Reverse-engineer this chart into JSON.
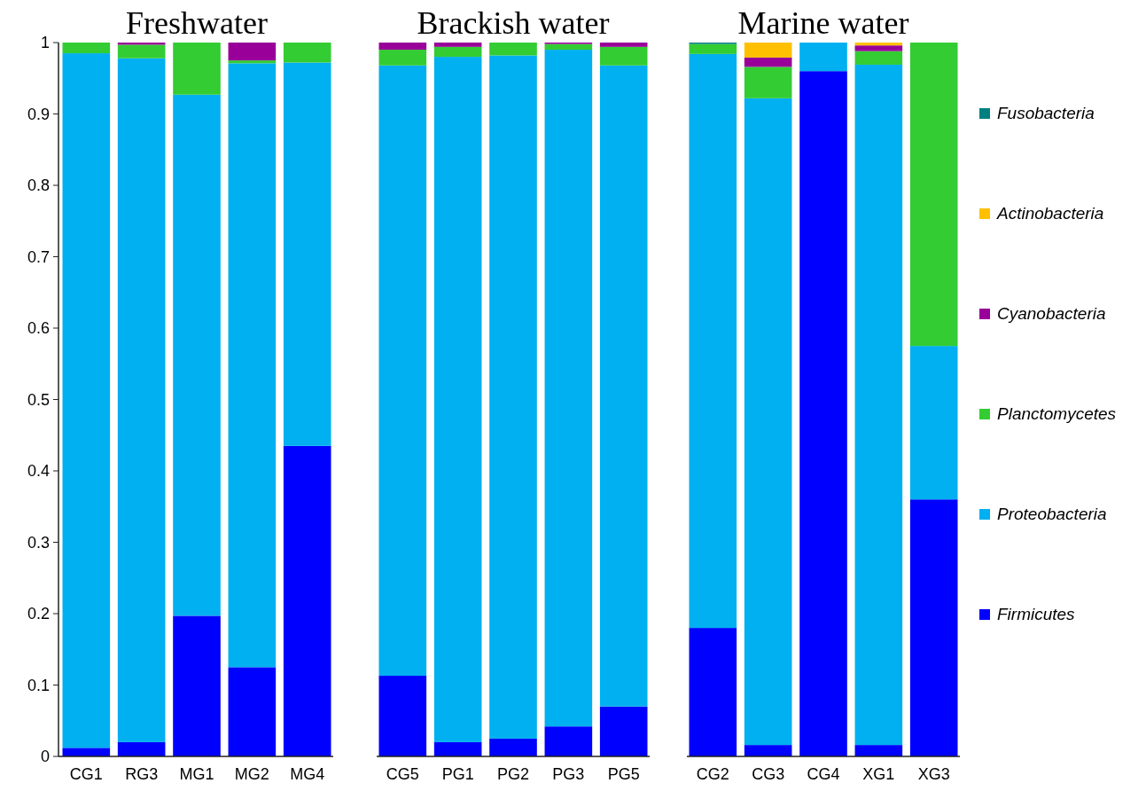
{
  "chart_data": [
    {
      "type": "bar",
      "title": "Freshwater",
      "stacked": true,
      "categories": [
        "CG1",
        "RG3",
        "MG1",
        "MG2",
        "MG4"
      ],
      "ylim": [
        0,
        1
      ],
      "yticks": [
        0,
        0.1,
        0.2,
        0.3,
        0.4,
        0.5,
        0.6,
        0.7,
        0.8,
        0.9,
        1
      ],
      "legend": false,
      "series": [
        {
          "color": "#0000ff",
          "values": [
            0.012,
            0.02,
            0.197,
            0.125,
            0.435
          ]
        },
        {
          "color": "#00b0f0",
          "values": [
            0.973,
            0.958,
            0.73,
            0.846,
            0.537
          ]
        },
        {
          "color": "#33cc33",
          "values": [
            0.015,
            0.019,
            0.073,
            0.004,
            0.028
          ]
        },
        {
          "color": "#990099",
          "values": [
            0,
            0.003,
            0,
            0.025,
            0
          ]
        }
      ]
    },
    {
      "type": "bar",
      "title": "Brackish water",
      "stacked": true,
      "categories": [
        "CG5",
        "PG1",
        "PG2",
        "PG3",
        "PG5"
      ],
      "ylim": [
        0,
        1
      ],
      "tick_labels": "x",
      "legend": false,
      "series": [
        {
          "color": "#0000ff",
          "values": [
            0.113,
            0.02,
            0.025,
            0.042,
            0.07
          ]
        },
        {
          "color": "#00b0f0",
          "values": [
            0.855,
            0.96,
            0.957,
            0.948,
            0.898
          ]
        },
        {
          "color": "#33cc33",
          "values": [
            0.022,
            0.014,
            0.018,
            0.008,
            0.026
          ]
        },
        {
          "color": "#990099",
          "values": [
            0.01,
            0.006,
            0,
            0.002,
            0.006
          ]
        }
      ]
    },
    {
      "type": "bar",
      "title": "Marine water",
      "stacked": true,
      "categories": [
        "CG2",
        "CG3",
        "CG4",
        "XG1",
        "XG3"
      ],
      "ylim": [
        0,
        1
      ],
      "tick_labels": "x",
      "legend": "right",
      "series": [
        {
          "name": "Firmicutes",
          "color": "#0000ff",
          "values": [
            0.18,
            0.016,
            0.96,
            0.016,
            0.36
          ]
        },
        {
          "name": "Proteobacteria",
          "color": "#00b0f0",
          "values": [
            0.804,
            0.906,
            0.04,
            0.953,
            0.215
          ]
        },
        {
          "name": "Planctomycetes",
          "color": "#33cc33",
          "values": [
            0.014,
            0.044,
            0,
            0.019,
            0.425
          ]
        },
        {
          "name": "Cyanobacteria",
          "color": "#990099",
          "values": [
            0,
            0.013,
            0,
            0.008,
            0
          ]
        },
        {
          "name": "Actinobacteria",
          "color": "#ffc000",
          "values": [
            0,
            0.021,
            0,
            0.004,
            0
          ]
        },
        {
          "name": "Fusobacteria",
          "color": "#008080",
          "values": [
            0.002,
            0,
            0,
            0,
            0
          ]
        }
      ]
    }
  ]
}
